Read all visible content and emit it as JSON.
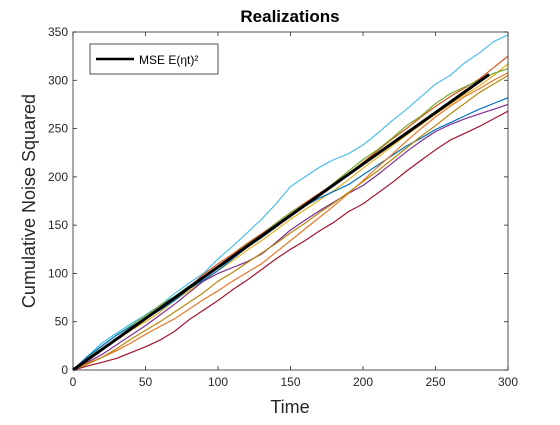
{
  "chart_data": {
    "type": "line",
    "title": "Realizations",
    "xlabel": "Time",
    "ylabel": "Cumulative Noise Squared",
    "xlim": [
      0,
      300
    ],
    "ylim": [
      0,
      350
    ],
    "xticks": [
      0,
      50,
      100,
      150,
      200,
      250,
      300
    ],
    "yticks": [
      0,
      50,
      100,
      150,
      200,
      250,
      300,
      350
    ],
    "grid": false,
    "legend": {
      "placement": "top-left",
      "entries": [
        {
          "name": "MSE E(ηt)²",
          "color": "#000000"
        }
      ]
    },
    "mse_line": {
      "name": "MSE E(ηt)²",
      "color": "#000000",
      "x": [
        0,
        287
      ],
      "y": [
        0,
        306
      ]
    },
    "series": [
      {
        "color": "#4DBEEE",
        "x": [
          0,
          10,
          20,
          30,
          40,
          50,
          60,
          70,
          80,
          90,
          100,
          110,
          120,
          130,
          140,
          150,
          160,
          170,
          180,
          190,
          200,
          210,
          220,
          230,
          240,
          250,
          260,
          270,
          280,
          290,
          300
        ],
        "y": [
          0,
          14,
          28,
          38,
          48,
          57,
          67,
          79,
          90,
          100,
          115,
          128,
          142,
          156,
          172,
          190,
          200,
          210,
          218,
          224,
          233,
          245,
          258,
          270,
          283,
          296,
          305,
          318,
          328,
          340,
          347
        ]
      },
      {
        "color": "#D95319",
        "x": [
          0,
          10,
          20,
          30,
          40,
          50,
          60,
          70,
          80,
          90,
          100,
          110,
          120,
          130,
          140,
          150,
          160,
          170,
          180,
          190,
          200,
          210,
          220,
          230,
          240,
          250,
          260,
          270,
          280,
          290,
          300
        ],
        "y": [
          0,
          10,
          22,
          32,
          42,
          53,
          63,
          75,
          86,
          99,
          110,
          120,
          131,
          141,
          152,
          163,
          173,
          183,
          193,
          203,
          215,
          227,
          239,
          250,
          262,
          273,
          283,
          292,
          301,
          313,
          325
        ]
      },
      {
        "color": "#EDB120",
        "x": [
          0,
          10,
          20,
          30,
          40,
          50,
          60,
          70,
          80,
          90,
          100,
          110,
          120,
          130,
          140,
          150,
          160,
          170,
          180,
          190,
          200,
          210,
          220,
          230,
          240,
          250,
          260,
          270,
          280,
          290,
          300
        ],
        "y": [
          0,
          11,
          22,
          31,
          41,
          50,
          60,
          72,
          82,
          92,
          103,
          113,
          124,
          134,
          145,
          156,
          166,
          176,
          186,
          197,
          209,
          220,
          232,
          243,
          254,
          265,
          275,
          285,
          294,
          305,
          317
        ]
      },
      {
        "color": "#77AC30",
        "x": [
          0,
          10,
          20,
          30,
          40,
          50,
          60,
          70,
          80,
          90,
          100,
          110,
          120,
          130,
          140,
          150,
          160,
          170,
          180,
          190,
          200,
          210,
          220,
          230,
          240,
          250,
          260,
          270,
          280,
          290,
          300
        ],
        "y": [
          0,
          13,
          25,
          36,
          46,
          56,
          67,
          76,
          87,
          97,
          107,
          118,
          130,
          140,
          152,
          163,
          172,
          182,
          194,
          206,
          218,
          228,
          240,
          253,
          263,
          276,
          286,
          293,
          300,
          307,
          312
        ]
      },
      {
        "color": "#0072BD",
        "x": [
          0,
          10,
          20,
          30,
          40,
          50,
          60,
          70,
          80,
          90,
          100,
          110,
          120,
          130,
          140,
          150,
          160,
          170,
          180,
          190,
          200,
          210,
          220,
          230,
          240,
          250,
          260,
          270,
          280,
          290,
          300
        ],
        "y": [
          0,
          14,
          25,
          36,
          45,
          53,
          62,
          72,
          84,
          93,
          103,
          115,
          127,
          137,
          148,
          160,
          170,
          178,
          185,
          192,
          202,
          212,
          222,
          232,
          240,
          249,
          256,
          263,
          270,
          276,
          282
        ]
      },
      {
        "color": "#A2142F",
        "x": [
          0,
          10,
          20,
          30,
          40,
          50,
          60,
          70,
          80,
          90,
          100,
          110,
          120,
          130,
          140,
          150,
          160,
          170,
          180,
          190,
          200,
          210,
          220,
          230,
          240,
          250,
          260,
          270,
          280,
          290,
          300
        ],
        "y": [
          0,
          4,
          8,
          12,
          18,
          24,
          31,
          40,
          52,
          62,
          72,
          83,
          93,
          104,
          115,
          125,
          134,
          144,
          153,
          164,
          172,
          183,
          194,
          206,
          217,
          228,
          238,
          245,
          252,
          260,
          268
        ]
      },
      {
        "color": "#7E2F8E",
        "x": [
          0,
          10,
          20,
          30,
          40,
          50,
          60,
          70,
          80,
          90,
          100,
          110,
          120,
          130,
          140,
          150,
          160,
          170,
          180,
          190,
          200,
          210,
          220,
          230,
          240,
          250,
          260,
          270,
          280,
          290,
          300
        ],
        "y": [
          0,
          8,
          16,
          26,
          36,
          46,
          57,
          68,
          80,
          92,
          100,
          106,
          112,
          120,
          132,
          145,
          155,
          165,
          174,
          183,
          191,
          202,
          214,
          226,
          237,
          247,
          254,
          260,
          265,
          270,
          275
        ]
      },
      {
        "color": "#E8782A",
        "x": [
          0,
          10,
          20,
          30,
          40,
          50,
          60,
          70,
          80,
          90,
          100,
          110,
          120,
          130,
          140,
          150,
          160,
          170,
          180,
          190,
          200,
          210,
          220,
          230,
          240,
          250,
          260,
          270,
          280,
          290,
          300
        ],
        "y": [
          0,
          7,
          13,
          20,
          28,
          37,
          45,
          53,
          63,
          73,
          82,
          92,
          101,
          110,
          122,
          134,
          146,
          158,
          170,
          183,
          196,
          210,
          223,
          237,
          250,
          262,
          273,
          283,
          291,
          300,
          308
        ]
      },
      {
        "color": "#B8860B",
        "x": [
          0,
          10,
          20,
          30,
          40,
          50,
          60,
          70,
          80,
          90,
          100,
          110,
          120,
          130,
          140,
          150,
          160,
          170,
          180,
          190,
          200,
          210,
          220,
          230,
          240,
          250,
          260,
          270,
          280,
          290,
          300
        ],
        "y": [
          0,
          6,
          13,
          22,
          32,
          41,
          50,
          60,
          70,
          80,
          92,
          101,
          111,
          121,
          131,
          142,
          152,
          163,
          173,
          184,
          195,
          206,
          218,
          230,
          242,
          253,
          265,
          276,
          287,
          296,
          305
        ]
      }
    ]
  }
}
